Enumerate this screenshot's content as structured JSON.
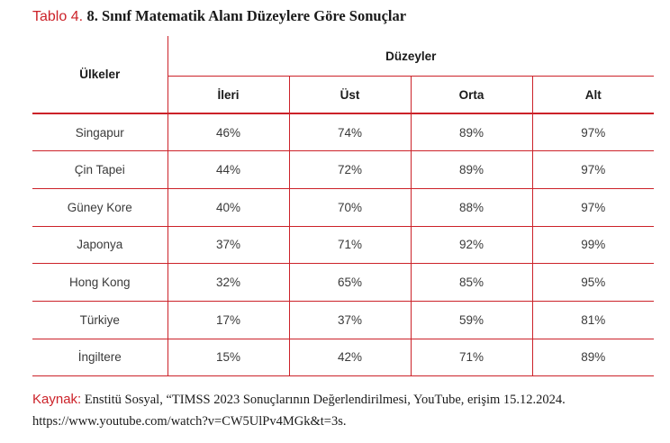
{
  "caption": {
    "label": "Tablo 4.",
    "title": "8. Sınıf Matematik Alanı Düzeylere Göre Sonuçlar"
  },
  "table": {
    "country_header": "Ülkeler",
    "group_header": "Düzeyler",
    "columns": [
      "İleri",
      "Üst",
      "Orta",
      "Alt"
    ],
    "rows": [
      {
        "country": "Singapur",
        "values": [
          "46%",
          "74%",
          "89%",
          "97%"
        ]
      },
      {
        "country": "Çin Tapei",
        "values": [
          "44%",
          "72%",
          "89%",
          "97%"
        ]
      },
      {
        "country": "Güney Kore",
        "values": [
          "40%",
          "70%",
          "88%",
          "97%"
        ]
      },
      {
        "country": "Japonya",
        "values": [
          "37%",
          "71%",
          "92%",
          "99%"
        ]
      },
      {
        "country": "Hong Kong",
        "values": [
          "32%",
          "65%",
          "85%",
          "95%"
        ]
      },
      {
        "country": "Türkiye",
        "values": [
          "17%",
          "37%",
          "59%",
          "81%"
        ]
      },
      {
        "country": "İngiltere",
        "values": [
          "15%",
          "42%",
          "71%",
          "89%"
        ]
      }
    ]
  },
  "source": {
    "label": "Kaynak:",
    "text": "Enstitü Sosyal, “TIMSS 2023 Sonuçlarının Değerlendirilmesi, YouTube, erişim 15.12.2024. https://www.youtube.com/watch?v=CW5UlPv4MGk&t=3s."
  },
  "colors": {
    "accent": "#cc2229",
    "text": "#333333"
  }
}
